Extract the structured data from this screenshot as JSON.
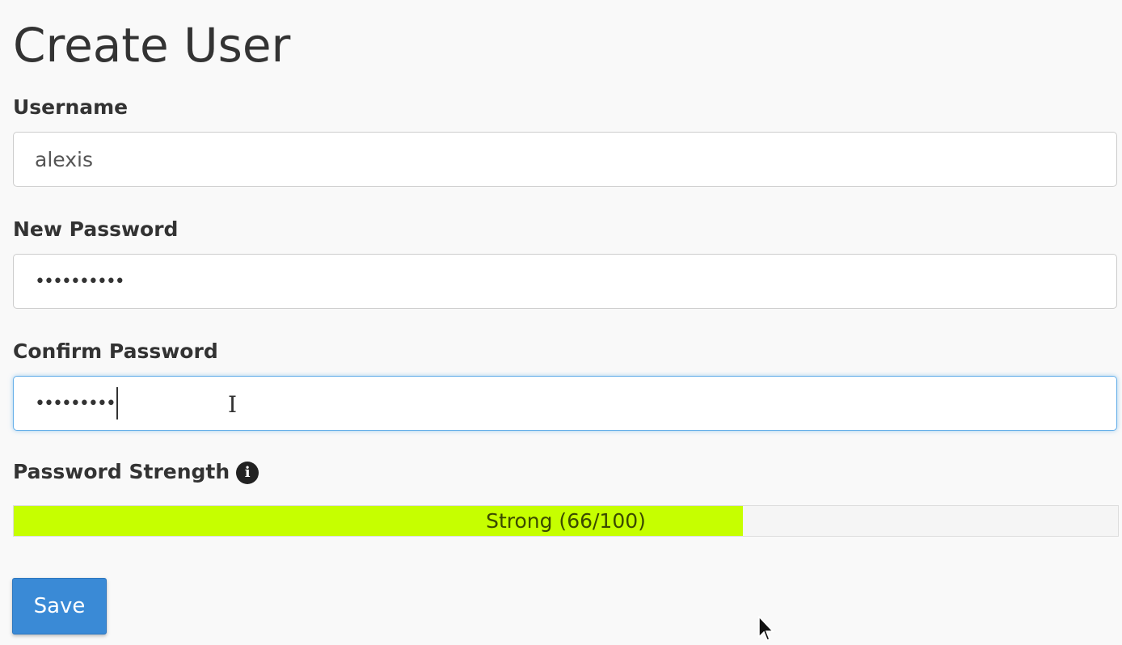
{
  "page": {
    "title": "Create User"
  },
  "form": {
    "username": {
      "label": "Username",
      "value": "alexis"
    },
    "new_password": {
      "label": "New Password",
      "masked_value": "••••••••••"
    },
    "confirm_password": {
      "label": "Confirm Password",
      "masked_value": "•••••••••"
    },
    "strength": {
      "label": "Password Strength",
      "info_icon": "info-circle-icon",
      "text": "Strong (66/100)",
      "score": 66,
      "max": 100,
      "color": "#c6ff00"
    },
    "save_label": "Save"
  },
  "colors": {
    "primary": "#3a8ad6",
    "focus": "#66afe9"
  }
}
